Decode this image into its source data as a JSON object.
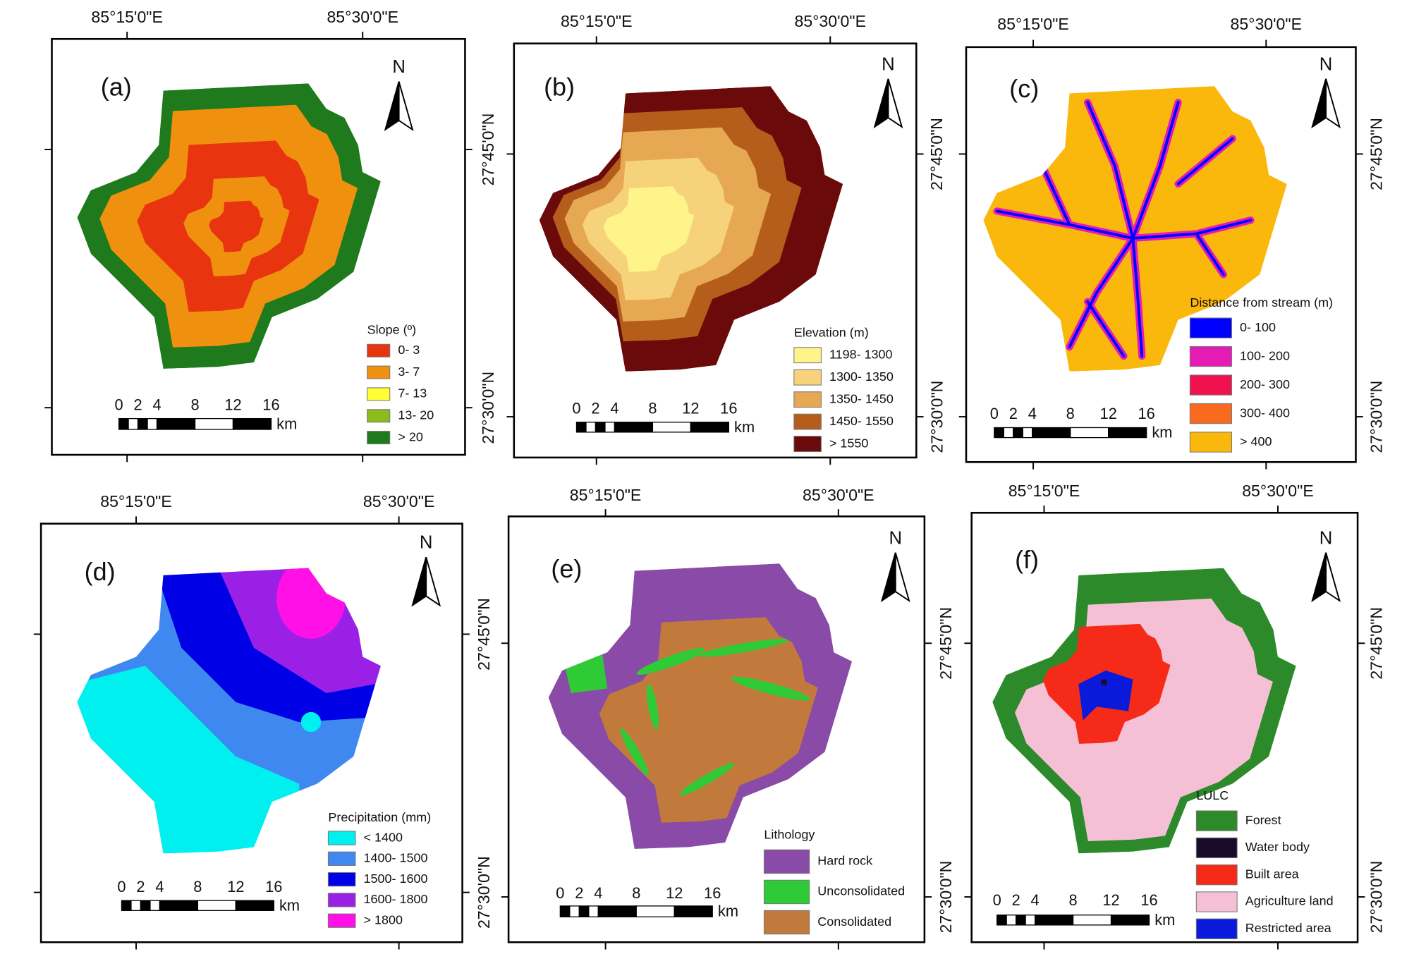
{
  "lon_labels": [
    "85°15'0\"E",
    "85°30'0\"E"
  ],
  "lat_labels": [
    "27°45'0\"N",
    "27°30'0\"N"
  ],
  "north": "N",
  "scale_labels": [
    "0",
    "2",
    "4",
    "8",
    "12",
    "16"
  ],
  "scale_unit": "km",
  "panels": [
    {
      "label": "(a)",
      "legend_title": "Slope (º)",
      "legend": [
        {
          "label": "0- 3",
          "color": "#e8350f"
        },
        {
          "label": "3- 7",
          "color": "#f0900f"
        },
        {
          "label": "7- 13",
          "color": "#ffff33"
        },
        {
          "label": "13- 20",
          "color": "#8dba1c"
        },
        {
          "label": "> 20",
          "color": "#1e7a1c"
        }
      ]
    },
    {
      "label": "(b)",
      "legend_title": "Elevation (m)",
      "legend": [
        {
          "label": "1198- 1300",
          "color": "#fff48a"
        },
        {
          "label": "1300- 1350",
          "color": "#f6d27a"
        },
        {
          "label": "1350- 1450",
          "color": "#e6a852"
        },
        {
          "label": "1450- 1550",
          "color": "#b55e1c"
        },
        {
          "label": "> 1550",
          "color": "#6b0a0a"
        }
      ]
    },
    {
      "label": "(c)",
      "legend_title": "Distance from stream (m)",
      "legend": [
        {
          "label": "0- 100",
          "color": "#0000ff"
        },
        {
          "label": "100- 200",
          "color": "#e51bb5"
        },
        {
          "label": "200- 300",
          "color": "#f0124f"
        },
        {
          "label": "300- 400",
          "color": "#f96a1e"
        },
        {
          "label": "> 400",
          "color": "#fbb80c"
        }
      ]
    },
    {
      "label": "(d)",
      "legend_title": "Precipitation (mm)",
      "legend": [
        {
          "label": "< 1400",
          "color": "#00f0f0"
        },
        {
          "label": "1400- 1500",
          "color": "#3f88f0"
        },
        {
          "label": "1500- 1600",
          "color": "#0000e6"
        },
        {
          "label": "1600- 1800",
          "color": "#9a20e6"
        },
        {
          "label": "> 1800",
          "color": "#ff10e6"
        }
      ]
    },
    {
      "label": "(e)",
      "legend_title": "Lithology",
      "legend": [
        {
          "label": "Hard rock",
          "color": "#8a4ba8"
        },
        {
          "label": "Unconsolidated",
          "color": "#2fcb37"
        },
        {
          "label": "Consolidated",
          "color": "#c27a3c"
        }
      ]
    },
    {
      "label": "(f)",
      "legend_title": "LULC",
      "legend": [
        {
          "label": "Forest",
          "color": "#2c8a2a"
        },
        {
          "label": "Water body",
          "color": "#1a0a2a"
        },
        {
          "label": "Built area",
          "color": "#f52a18"
        },
        {
          "label": "Agriculture land",
          "color": "#f5c0d5"
        },
        {
          "label": "Restricted area",
          "color": "#0a1adb"
        }
      ]
    }
  ]
}
